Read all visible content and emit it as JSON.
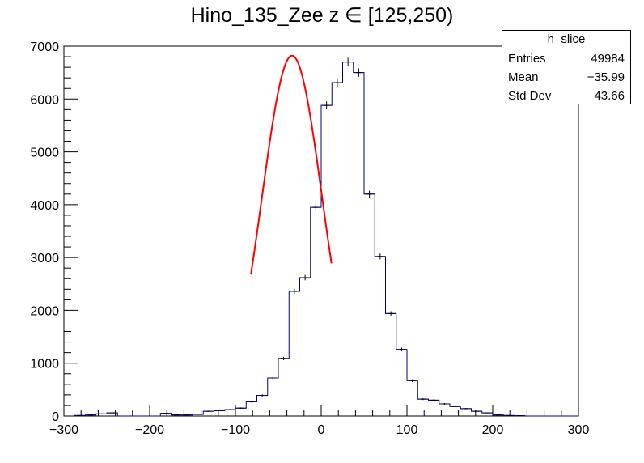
{
  "title": "Hino_135_Zee z  ∈ [125,250)",
  "stats_box": {
    "name": "h_slice",
    "entries_label": "Entries",
    "entries_value": "49984",
    "mean_label": "Mean",
    "mean_value": "−35.99",
    "stddev_label": "Std Dev",
    "stddev_value": "43.66"
  },
  "chart_data": {
    "type": "bar",
    "title": "Hino_135_Zee z  ∈ [125,250)",
    "xlabel": "",
    "ylabel": "",
    "xlim": [
      -300,
      300
    ],
    "ylim": [
      0,
      7000
    ],
    "x_ticks": [
      -300,
      -200,
      -100,
      0,
      100,
      200,
      300
    ],
    "x_tick_labels": [
      "−300",
      "−200",
      "−100",
      "0",
      "100",
      "200",
      "300"
    ],
    "y_ticks": [
      0,
      1000,
      2000,
      3000,
      4000,
      5000,
      6000,
      7000
    ],
    "y_tick_labels": [
      "0",
      "1000",
      "2000",
      "3000",
      "4000",
      "5000",
      "6000",
      "7000"
    ],
    "bin_width": 12.5,
    "bin_start": -300,
    "bin_values": [
      0,
      10,
      20,
      40,
      60,
      0,
      0,
      0,
      0,
      50,
      20,
      20,
      30,
      90,
      100,
      120,
      150,
      270,
      390,
      720,
      1090,
      2360,
      2620,
      3950,
      5880,
      6310,
      6700,
      6500,
      4200,
      3020,
      1940,
      1260,
      670,
      320,
      300,
      230,
      180,
      140,
      90,
      60,
      20,
      10,
      5,
      0,
      0,
      0,
      0,
      0
    ],
    "histogram_color": "#00007f",
    "fit": {
      "type": "gaussian",
      "amplitude": 6820,
      "mean": -34,
      "sigma": 35.1,
      "x_range": [
        -82,
        12
      ],
      "color": "#ff0000"
    }
  }
}
